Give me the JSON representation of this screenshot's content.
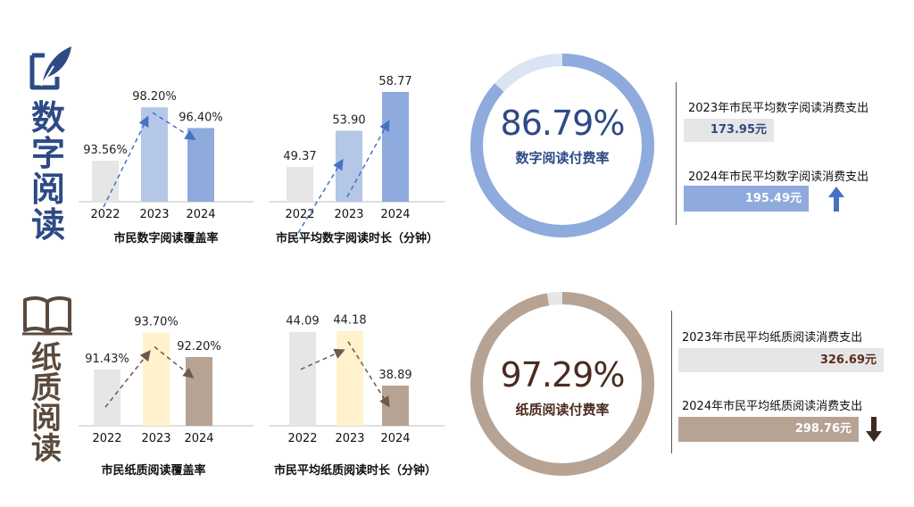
{
  "digital": {
    "title": [
      "数",
      "字",
      "阅",
      "读"
    ],
    "icon": "feather-pen-icon",
    "coverage": {
      "caption": "市民数字阅读覆盖率"
    },
    "duration": {
      "caption": "市民平均数字阅读时长（分钟）"
    },
    "rate": {
      "value": "86.79%",
      "label": "数字阅读付费率",
      "fraction": 0.8679
    },
    "spend_2023": {
      "label": "2023年市民平均数字阅读消费支出",
      "value": "173.95元"
    },
    "spend_2024": {
      "label": "2024年市民平均数字阅读消费支出",
      "value": "195.49元",
      "trend": "up-arrow-icon"
    },
    "colors": {
      "title": "#2e4a86",
      "bar_2022": "#e6e6e6",
      "bar_2023": "#b4c7e7",
      "bar_2024": "#8faadc",
      "ring": "#8faadc",
      "ring_bg": "#dbe4f3",
      "arrow": "#4472c4",
      "box_2023": "#e6e6e6",
      "box_2024": "#8faadc",
      "value_text": "#2e4a86"
    }
  },
  "paper": {
    "title": [
      "纸",
      "质",
      "阅",
      "读"
    ],
    "icon": "open-book-icon",
    "coverage": {
      "caption": "市民纸质阅读覆盖率"
    },
    "duration": {
      "caption": "市民平均纸质阅读时长（分钟）"
    },
    "rate": {
      "value": "97.29%",
      "label": "纸质阅读付费率",
      "fraction": 0.9729
    },
    "spend_2023": {
      "label": "2023年市民平均纸质阅读消费支出",
      "value": "326.69元"
    },
    "spend_2024": {
      "label": "2024年市民平均纸质阅读消费支出",
      "value": "298.76元",
      "trend": "down-arrow-icon"
    },
    "colors": {
      "title": "#5a4a3e",
      "bar_2022": "#e6e6e6",
      "bar_2023": "#fff2cc",
      "bar_2024": "#b7a394",
      "ring": "#b7a394",
      "ring_bg": "#e6e6e6",
      "arrow": "#6b5a4e",
      "box_2023": "#e6e6e6",
      "box_2024": "#b7a394",
      "value_text": "#5a2e1e"
    }
  },
  "chart_data": [
    {
      "type": "bar",
      "id": "digital-coverage",
      "title": "市民数字阅读覆盖率",
      "categories": [
        "2022",
        "2023",
        "2024"
      ],
      "values": [
        93.56,
        98.2,
        96.4
      ],
      "labels": [
        "93.56%",
        "98.20%",
        "96.40%"
      ],
      "unit": "%",
      "ylim": [
        90,
        100
      ]
    },
    {
      "type": "bar",
      "id": "digital-duration",
      "title": "市民平均数字阅读时长（分钟）",
      "categories": [
        "2022",
        "2023",
        "2024"
      ],
      "values": [
        49.37,
        53.9,
        58.77
      ],
      "labels": [
        "49.37",
        "53.90",
        "58.77"
      ],
      "ylim": [
        45,
        60
      ]
    },
    {
      "type": "bar",
      "id": "paper-coverage",
      "title": "市民纸质阅读覆盖率",
      "categories": [
        "2022",
        "2023",
        "2024"
      ],
      "values": [
        91.43,
        93.7,
        92.2
      ],
      "labels": [
        "91.43%",
        "93.70%",
        "92.20%"
      ],
      "unit": "%",
      "ylim": [
        88,
        94
      ]
    },
    {
      "type": "bar",
      "id": "paper-duration",
      "title": "市民平均纸质阅读时长（分钟）",
      "categories": [
        "2022",
        "2023",
        "2024"
      ],
      "values": [
        44.09,
        44.18,
        38.89
      ],
      "labels": [
        "44.09",
        "44.18",
        "38.89"
      ],
      "ylim": [
        35,
        44.5
      ]
    }
  ]
}
